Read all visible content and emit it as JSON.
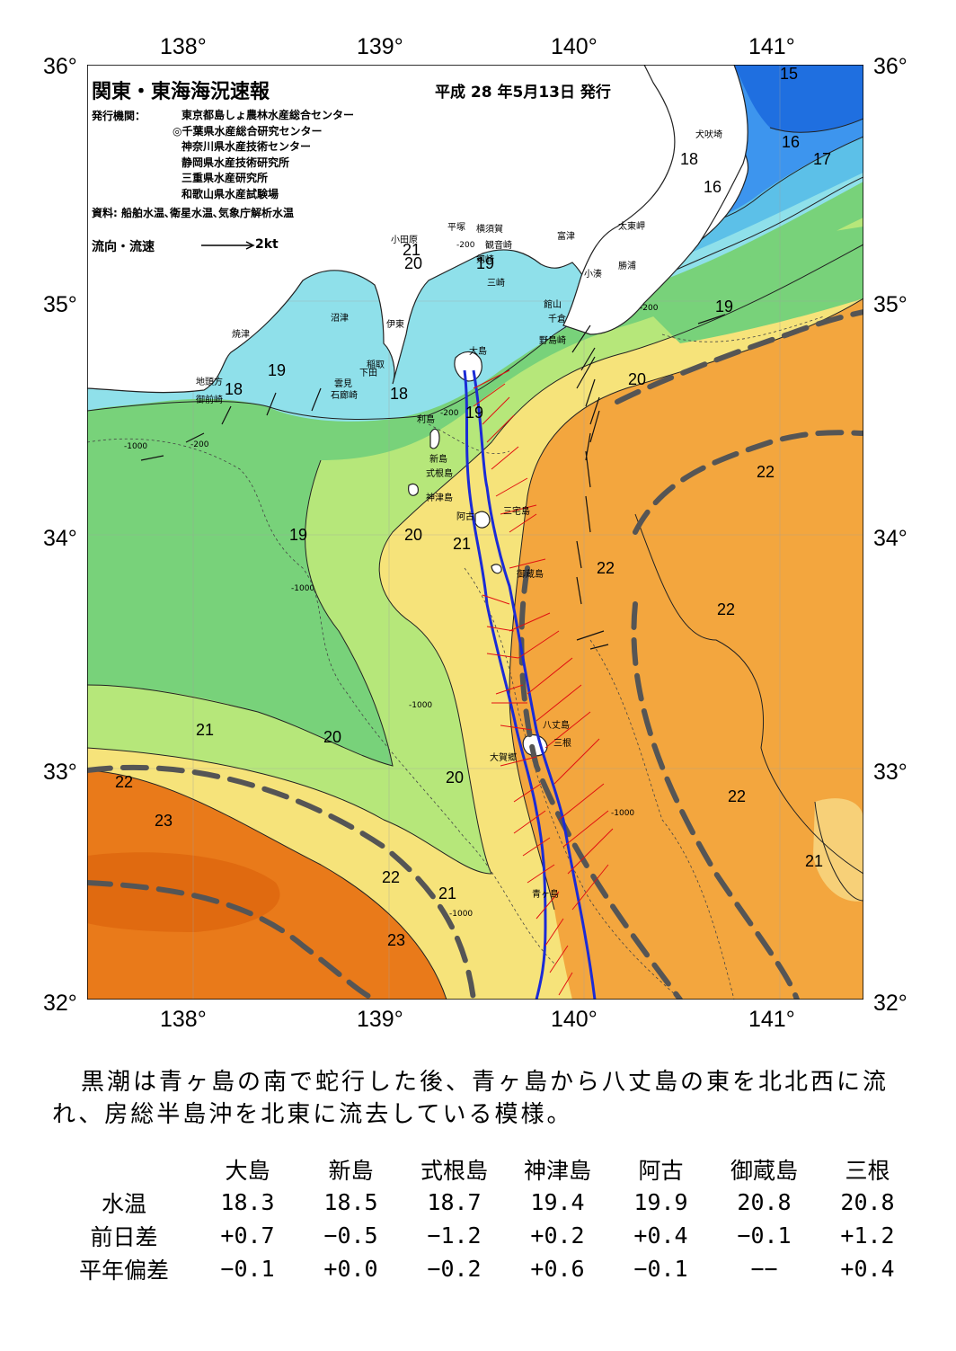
{
  "title": "関東・東海海況速報",
  "issue_date": "平成 28 年5月13日 発行",
  "issuers_label": "発行機関：",
  "issuers": [
    "東京都島しょ農林水産総合センター",
    "◎千葉県水産総合研究センター",
    "神奈川県水産技術センター",
    "静岡県水産技術研究所",
    "三重県水産研究所",
    "和歌山県水産試験場"
  ],
  "source": "資料: 船舶水温､衛星水温､気象庁解析水温",
  "legend": {
    "label": "流向・流速",
    "scale": "2kt"
  },
  "lon_ticks": [
    "138°",
    "139°",
    "140°",
    "141°"
  ],
  "lat_ticks": [
    "36°",
    "35°",
    "34°",
    "33°",
    "32°"
  ],
  "place_labels": [
    "犬吠埼",
    "太東岬",
    "勝浦",
    "小湊",
    "富津",
    "館山",
    "千倉",
    "野島崎",
    "観音崎",
    "剱崎",
    "三崎",
    "横須賀",
    "平塚",
    "小田原",
    "沼津",
    "伊東",
    "焼津",
    "稲取",
    "下田",
    "雲見",
    "石廊崎",
    "地頭方",
    "御前崎",
    "大島",
    "利島",
    "新島",
    "式根島",
    "神津島",
    "三宅島",
    "阿古",
    "御蔵島",
    "八丈島",
    "三根",
    "大賀郷",
    "青ヶ島"
  ],
  "isotherm_labels": [
    "15",
    "16",
    "17",
    "18",
    "18",
    "18",
    "19",
    "19",
    "19",
    "19",
    "19",
    "20",
    "20",
    "20",
    "20",
    "20",
    "21",
    "21",
    "21",
    "21",
    "21",
    "22",
    "22",
    "22",
    "22",
    "22",
    "23",
    "23"
  ],
  "depth_labels": [
    "-200",
    "-1000"
  ],
  "colors": {
    "t15": "#1f6fe0",
    "t16": "#3d95ee",
    "t17": "#5cc0e8",
    "t18": "#8fe0ea",
    "t19": "#78d27a",
    "t20": "#b6e77a",
    "t21": "#f6e37a",
    "t22": "#f3a63e",
    "t23": "#e97a1a",
    "land": "#ffffff",
    "kuroshio_axis": "#555555",
    "ship_track": "#1b2bd6",
    "current_vector": "#e11111"
  },
  "summary": "黒潮は青ヶ島の南で蛇行した後、青ヶ島から八丈島の東を北北西に流れ、房総半島沖を北東に流去している模様。",
  "table": {
    "columns": [
      "大島",
      "新島",
      "式根島",
      "神津島",
      "阿古",
      "御蔵島",
      "三根"
    ],
    "rows": [
      {
        "label": "水温",
        "values": [
          "18.3",
          "18.5",
          "18.7",
          "19.4",
          "19.9",
          "20.8",
          "20.8"
        ]
      },
      {
        "label": "前日差",
        "values": [
          "+0.7",
          "−0.5",
          "−1.2",
          "+0.2",
          "+0.4",
          "−0.1",
          "+1.2"
        ]
      },
      {
        "label": "平年偏差",
        "values": [
          "−0.1",
          "+0.0",
          "−0.2",
          "+0.6",
          "−0.1",
          "−−",
          "+0.4"
        ]
      }
    ]
  }
}
